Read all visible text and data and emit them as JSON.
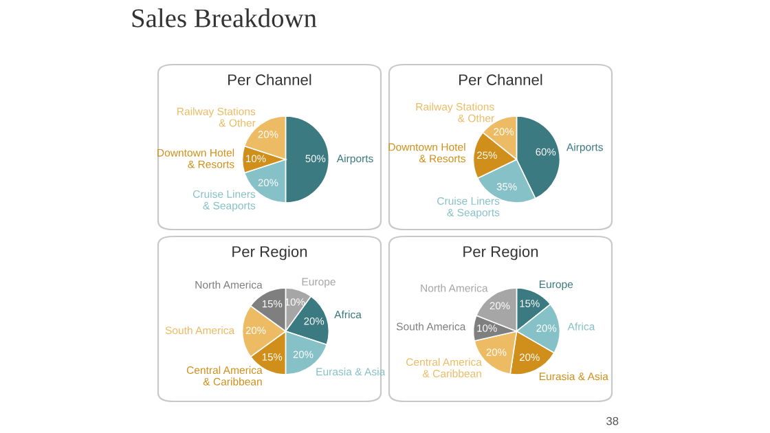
{
  "chart_data": [
    {
      "type": "pie",
      "title": "Per Channel",
      "annotations": [
        "Sales Breakdown"
      ],
      "categories": [
        "Airports",
        "Cruise Liners\n& Seaports",
        "Downtown Hotel\n& Resorts",
        "Railway Stations\n& Other"
      ],
      "values": [
        50,
        20,
        10,
        20
      ],
      "value_labels": [
        "50%",
        "20%",
        "10%",
        "20%"
      ],
      "colors": [
        "#3b7a80",
        "#86c1c7",
        "#d08f1a",
        "#ecbb63"
      ]
    },
    {
      "type": "pie",
      "title": "Per Channel",
      "categories": [
        "Airports",
        "Cruise Liners\n& Seaports",
        "Downtown Hotel\n& Resorts",
        "Railway Stations\n& Other"
      ],
      "values": [
        60,
        35,
        25,
        20
      ],
      "value_labels": [
        "60%",
        "35%",
        "25%",
        "20%"
      ],
      "colors": [
        "#3b7a80",
        "#86c1c7",
        "#d08f1a",
        "#ecbb63"
      ]
    },
    {
      "type": "pie",
      "title": "Per Region",
      "categories": [
        "Europe",
        "Africa",
        "Eurasia & Asia",
        "Central America\n& Caribbean",
        "South America",
        "North America"
      ],
      "values": [
        10,
        20,
        20,
        15,
        20,
        15
      ],
      "value_labels": [
        "10%",
        "20%",
        "20%",
        "15%",
        "20%",
        "15%"
      ],
      "colors": [
        "#a6a6a6",
        "#3b7a80",
        "#86c1c7",
        "#d08f1a",
        "#ecbb63",
        "#7f7f7f"
      ]
    },
    {
      "type": "pie",
      "title": "Per Region",
      "annotations": [
        "38"
      ],
      "categories": [
        "Europe",
        "Africa",
        "Eurasia & Asia",
        "Central America\n& Caribbean",
        "South America",
        "North America"
      ],
      "values": [
        15,
        20,
        20,
        20,
        10,
        20
      ],
      "value_labels": [
        "15%",
        "20%",
        "20%",
        "20%",
        "10%",
        "20%"
      ],
      "colors": [
        "#3b7a80",
        "#86c1c7",
        "#d08f1a",
        "#ecbb63",
        "#7f7f7f",
        "#a6a6a6"
      ]
    }
  ]
}
